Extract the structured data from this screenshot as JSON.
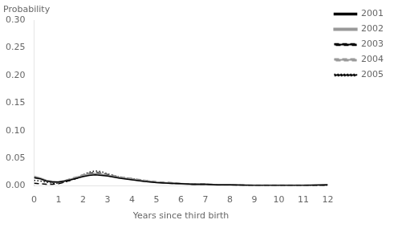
{
  "chart_data": {
    "type": "line",
    "xlabel": "Years since third birth",
    "ylabel": "Probability",
    "x": [
      0,
      0.25,
      0.5,
      0.75,
      1.0,
      1.25,
      1.5,
      1.75,
      2.0,
      2.25,
      2.5,
      2.75,
      3.0,
      3.5,
      4.0,
      4.5,
      5.0,
      5.5,
      6.0,
      6.5,
      7.0,
      7.5,
      8.0,
      9.0,
      10.0,
      11.0,
      12.0
    ],
    "series": [
      {
        "name": "2001",
        "color": "#000000",
        "line_style": "solid",
        "values": [
          0.015,
          0.013,
          0.009,
          0.007,
          0.007,
          0.009,
          0.011,
          0.014,
          0.017,
          0.019,
          0.02,
          0.019,
          0.018,
          0.014,
          0.011,
          0.008,
          0.006,
          0.005,
          0.004,
          0.003,
          0.003,
          0.002,
          0.002,
          0.001,
          0.001,
          0.001,
          0.002
        ]
      },
      {
        "name": "2002",
        "color": "#999999",
        "line_style": "solid",
        "values": [
          0.017,
          0.014,
          0.01,
          0.008,
          0.007,
          0.009,
          0.012,
          0.015,
          0.019,
          0.021,
          0.022,
          0.021,
          0.019,
          0.015,
          0.012,
          0.009,
          0.007,
          0.005,
          0.004,
          0.003,
          0.003,
          0.002,
          0.002,
          0.001,
          0.001,
          0.001,
          0.002
        ]
      },
      {
        "name": "2003",
        "color": "#000000",
        "line_style": "dashed",
        "values": [
          0.005,
          0.004,
          0.003,
          0.003,
          0.004,
          0.007,
          0.01,
          0.014,
          0.018,
          0.022,
          0.024,
          0.022,
          0.02,
          0.015,
          0.012,
          0.009,
          0.007,
          0.005,
          0.004,
          0.003,
          0.003,
          0.002,
          0.002,
          0.001,
          0.001,
          0.001,
          0.001
        ]
      },
      {
        "name": "2004",
        "color": "#999999",
        "line_style": "dashed",
        "values": [
          0.015,
          0.013,
          0.009,
          0.007,
          0.007,
          0.009,
          0.013,
          0.016,
          0.02,
          0.023,
          0.025,
          0.024,
          0.021,
          0.016,
          0.013,
          0.01,
          0.007,
          0.006,
          0.004,
          0.003,
          0.003,
          0.002,
          0.002,
          0.001,
          0.001,
          0.001,
          0.001
        ]
      },
      {
        "name": "2005",
        "color": "#000000",
        "line_style": "dotted",
        "values": [
          0.01,
          0.009,
          0.007,
          0.005,
          0.005,
          0.007,
          0.011,
          0.015,
          0.02,
          0.025,
          0.027,
          0.026,
          0.022,
          0.016,
          0.013,
          0.01,
          0.007,
          0.005,
          0.004,
          0.003,
          0.003,
          0.002,
          0.002,
          0.001,
          0.001,
          0.001,
          0.001
        ]
      }
    ],
    "xlim": [
      0,
      12
    ],
    "xticks": [
      0,
      1,
      2,
      3,
      4,
      5,
      6,
      7,
      8,
      9,
      10,
      11,
      12
    ],
    "ylim": [
      0,
      0.3
    ],
    "yticks": [
      {
        "value": 0.0,
        "label": "0.00"
      },
      0.05,
      {
        "value": 0.1,
        "label": "0.10"
      },
      0.15,
      {
        "value": 0.2,
        "label": "0.20"
      },
      0.25,
      {
        "value": 0.3,
        "label": "0.30"
      }
    ],
    "grid": false,
    "legend": "upper right"
  }
}
